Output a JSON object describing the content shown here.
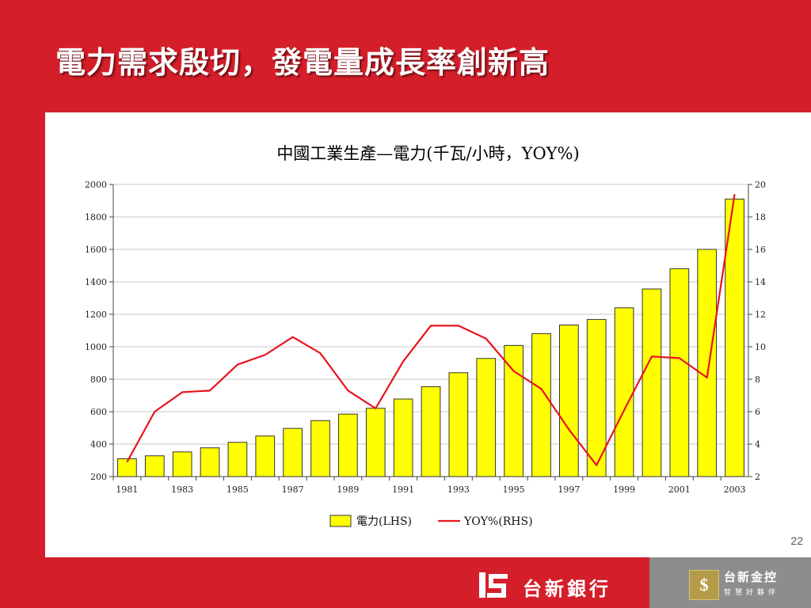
{
  "slide": {
    "title": "電力需求殷切，發電量成長率創新高",
    "page_number": "22"
  },
  "footer": {
    "bank_name": "台新銀行",
    "holding_name": "台新金控",
    "holding_slogan": "智慧好夥伴"
  },
  "colors": {
    "background": "#d41f2b",
    "bar_fill": "#ffff00",
    "bar_stroke": "#333333",
    "line": "#e8141e",
    "footer_gray": "#8d8d8d"
  },
  "chart_data": {
    "type": "bar+line",
    "title": "中國工業生產—電力(千瓦/小時，YOY%)",
    "categories": [
      "1981",
      "1982",
      "1983",
      "1984",
      "1985",
      "1986",
      "1987",
      "1988",
      "1989",
      "1990",
      "1991",
      "1992",
      "1993",
      "1994",
      "1995",
      "1996",
      "1997",
      "1998",
      "1999",
      "2000",
      "2001",
      "2002",
      "2003"
    ],
    "x_tick_labels": [
      "1981",
      "1983",
      "1985",
      "1987",
      "1989",
      "1991",
      "1993",
      "1995",
      "1997",
      "1999",
      "2001",
      "2003"
    ],
    "left_axis": {
      "min": 200,
      "max": 2000,
      "ticks": [
        "200",
        "400",
        "600",
        "800",
        "1000",
        "1200",
        "1400",
        "1600",
        "1800",
        "2000"
      ]
    },
    "right_axis": {
      "min": 2,
      "max": 20,
      "ticks": [
        "2",
        "4",
        "6",
        "8",
        "10",
        "12",
        "14",
        "16",
        "18",
        "20"
      ]
    },
    "grid": true,
    "legend_position": "bottom",
    "series": [
      {
        "name": "電力(LHS)",
        "type": "bar",
        "axis": "left",
        "values": [
          310,
          328,
          352,
          377,
          411,
          450,
          497,
          545,
          585,
          621,
          678,
          754,
          840,
          928,
          1008,
          1081,
          1134,
          1168,
          1240,
          1356,
          1481,
          1600,
          1910
        ]
      },
      {
        "name": "YOY%(RHS)",
        "type": "line",
        "axis": "right",
        "values": [
          2.9,
          6.0,
          7.2,
          7.3,
          8.9,
          9.5,
          10.6,
          9.6,
          7.3,
          6.2,
          9.1,
          11.3,
          11.3,
          10.5,
          8.5,
          7.4,
          4.9,
          2.7,
          6.1,
          9.4,
          9.3,
          8.1,
          19.4
        ]
      }
    ]
  }
}
